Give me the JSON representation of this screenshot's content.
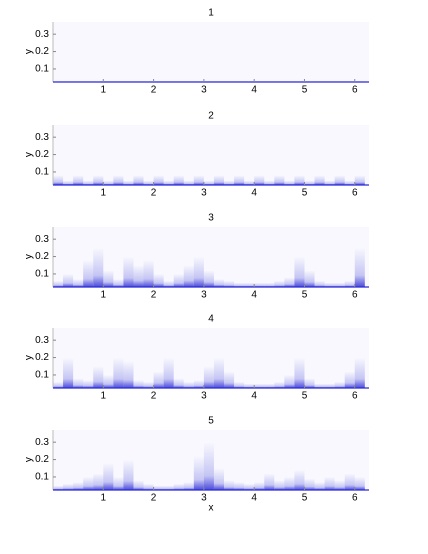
{
  "chart_data": [
    {
      "type": "heatmap",
      "title": "1",
      "ylabel": "y",
      "color": "#2b2bd6",
      "xlim": [
        0,
        6.283
      ],
      "ylim": [
        0.025,
        0.37
      ],
      "xticks": [
        1,
        2,
        3,
        4,
        5,
        6
      ],
      "yticks": [
        0.1,
        0.2,
        0.3
      ],
      "x": [
        0.1,
        0.3,
        0.5,
        0.7,
        0.9,
        1.1,
        1.3,
        1.5,
        1.7,
        1.9,
        2.1,
        2.3,
        2.5,
        2.7,
        2.9,
        3.1,
        3.3,
        3.5,
        3.7,
        3.9,
        4.1,
        4.3,
        4.5,
        4.7,
        4.9,
        5.1,
        5.3,
        5.5,
        5.7,
        5.9,
        6.1
      ],
      "values": [
        0.03,
        0.03,
        0.03,
        0.03,
        0.03,
        0.03,
        0.03,
        0.03,
        0.03,
        0.03,
        0.03,
        0.03,
        0.03,
        0.03,
        0.03,
        0.03,
        0.03,
        0.03,
        0.03,
        0.03,
        0.03,
        0.03,
        0.03,
        0.03,
        0.03,
        0.03,
        0.03,
        0.03,
        0.03,
        0.03,
        0.03
      ]
    },
    {
      "type": "heatmap",
      "title": "2",
      "ylabel": "y",
      "color": "#2b2bd6",
      "xlim": [
        0,
        6.283
      ],
      "ylim": [
        0.025,
        0.37
      ],
      "xticks": [
        1,
        2,
        3,
        4,
        5,
        6
      ],
      "yticks": [
        0.1,
        0.2,
        0.3
      ],
      "x": [
        0.1,
        0.3,
        0.5,
        0.7,
        0.9,
        1.1,
        1.3,
        1.5,
        1.7,
        1.9,
        2.1,
        2.3,
        2.5,
        2.7,
        2.9,
        3.1,
        3.3,
        3.5,
        3.7,
        3.9,
        4.1,
        4.3,
        4.5,
        4.7,
        4.9,
        5.1,
        5.3,
        5.5,
        5.7,
        5.9,
        6.1
      ],
      "values": [
        0.08,
        0.05,
        0.08,
        0.05,
        0.08,
        0.05,
        0.08,
        0.05,
        0.08,
        0.05,
        0.08,
        0.05,
        0.08,
        0.05,
        0.08,
        0.05,
        0.08,
        0.05,
        0.08,
        0.05,
        0.08,
        0.05,
        0.08,
        0.05,
        0.08,
        0.05,
        0.08,
        0.05,
        0.08,
        0.05,
        0.08
      ]
    },
    {
      "type": "heatmap",
      "title": "3",
      "ylabel": "y",
      "color": "#2b2bd6",
      "xlim": [
        0,
        6.283
      ],
      "ylim": [
        0.025,
        0.37
      ],
      "xticks": [
        1,
        2,
        3,
        4,
        5,
        6
      ],
      "yticks": [
        0.1,
        0.2,
        0.3
      ],
      "x": [
        0.1,
        0.3,
        0.5,
        0.7,
        0.9,
        1.1,
        1.3,
        1.5,
        1.7,
        1.9,
        2.1,
        2.3,
        2.5,
        2.7,
        2.9,
        3.1,
        3.3,
        3.5,
        3.7,
        3.9,
        4.1,
        4.3,
        4.5,
        4.7,
        4.9,
        5.1,
        5.3,
        5.5,
        5.7,
        5.9,
        6.1
      ],
      "values": [
        0.06,
        0.1,
        0.07,
        0.18,
        0.25,
        0.12,
        0.07,
        0.2,
        0.15,
        0.18,
        0.1,
        0.06,
        0.1,
        0.15,
        0.2,
        0.12,
        0.07,
        0.06,
        0.05,
        0.05,
        0.05,
        0.05,
        0.06,
        0.08,
        0.2,
        0.12,
        0.06,
        0.05,
        0.05,
        0.06,
        0.25
      ]
    },
    {
      "type": "heatmap",
      "title": "4",
      "ylabel": "y",
      "color": "#2b2bd6",
      "xlim": [
        0,
        6.283
      ],
      "ylim": [
        0.025,
        0.37
      ],
      "xticks": [
        1,
        2,
        3,
        4,
        5,
        6
      ],
      "yticks": [
        0.1,
        0.2,
        0.3
      ],
      "x": [
        0.1,
        0.3,
        0.5,
        0.7,
        0.9,
        1.1,
        1.3,
        1.5,
        1.7,
        1.9,
        2.1,
        2.3,
        2.5,
        2.7,
        2.9,
        3.1,
        3.3,
        3.5,
        3.7,
        3.9,
        4.1,
        4.3,
        4.5,
        4.7,
        4.9,
        5.1,
        5.3,
        5.5,
        5.7,
        5.9,
        6.1
      ],
      "values": [
        0.06,
        0.2,
        0.08,
        0.07,
        0.15,
        0.1,
        0.2,
        0.18,
        0.07,
        0.06,
        0.12,
        0.2,
        0.08,
        0.06,
        0.07,
        0.15,
        0.2,
        0.12,
        0.06,
        0.05,
        0.05,
        0.05,
        0.06,
        0.1,
        0.2,
        0.08,
        0.05,
        0.05,
        0.06,
        0.12,
        0.2
      ]
    },
    {
      "type": "heatmap",
      "title": "5",
      "xlabel": "x",
      "ylabel": "y",
      "color": "#2b2bd6",
      "xlim": [
        0,
        6.283
      ],
      "ylim": [
        0.025,
        0.37
      ],
      "xticks": [
        1,
        2,
        3,
        4,
        5,
        6
      ],
      "yticks": [
        0.1,
        0.2,
        0.3
      ],
      "x": [
        0.1,
        0.3,
        0.5,
        0.7,
        0.9,
        1.1,
        1.3,
        1.5,
        1.7,
        1.9,
        2.1,
        2.3,
        2.5,
        2.7,
        2.9,
        3.1,
        3.3,
        3.5,
        3.7,
        3.9,
        4.1,
        4.3,
        4.5,
        4.7,
        4.9,
        5.1,
        5.3,
        5.5,
        5.7,
        5.9,
        6.1
      ],
      "values": [
        0.05,
        0.06,
        0.07,
        0.1,
        0.12,
        0.18,
        0.1,
        0.2,
        0.08,
        0.06,
        0.05,
        0.05,
        0.06,
        0.07,
        0.22,
        0.3,
        0.15,
        0.08,
        0.07,
        0.06,
        0.07,
        0.12,
        0.08,
        0.1,
        0.14,
        0.09,
        0.07,
        0.1,
        0.08,
        0.12,
        0.1
      ]
    }
  ]
}
